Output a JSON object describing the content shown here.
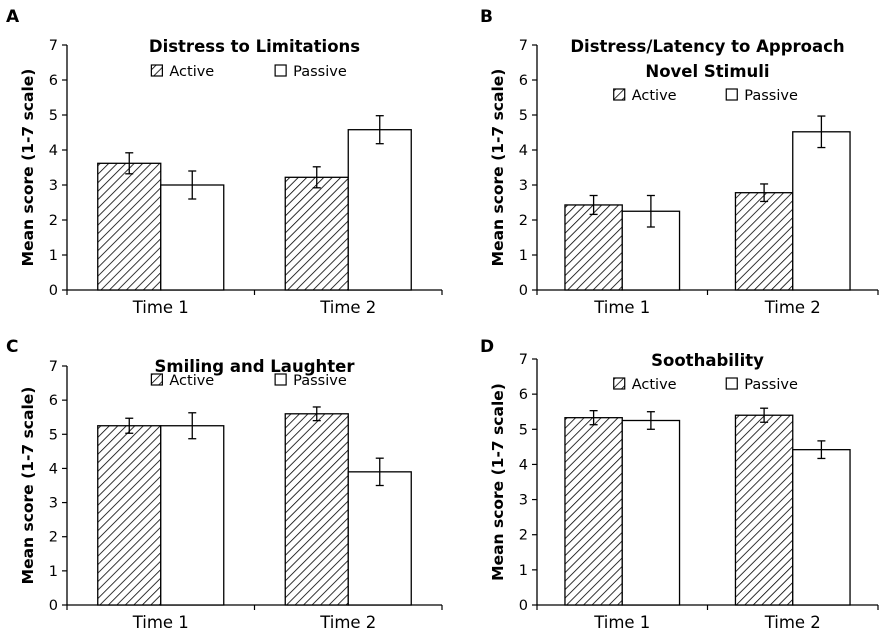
{
  "chart_data": [
    {
      "panel": "A",
      "type": "bar",
      "title": [
        "Distress to Limitations"
      ],
      "ylabel": "Mean score (1-7 scale)",
      "ylim": [
        0,
        7
      ],
      "yticks": [
        "0",
        "1",
        "2",
        "3",
        "4",
        "5",
        "6",
        "7"
      ],
      "categories": [
        "Time 1",
        "Time 2"
      ],
      "legend": "top",
      "series": [
        {
          "name": "Active",
          "pattern": "hatched",
          "values": [
            3.62,
            3.22
          ],
          "errors": [
            0.3,
            0.3
          ]
        },
        {
          "name": "Passive",
          "pattern": "open",
          "values": [
            3.0,
            4.58
          ],
          "errors": [
            0.4,
            0.4
          ]
        }
      ]
    },
    {
      "panel": "B",
      "type": "bar",
      "title": [
        "Distress/Latency to Approach",
        "Novel Stimuli"
      ],
      "ylabel": "Mean score (1-7 scale)",
      "ylim": [
        0,
        7
      ],
      "yticks": [
        "0",
        "1",
        "2",
        "3",
        "4",
        "5",
        "6",
        "7"
      ],
      "categories": [
        "Time 1",
        "Time 2"
      ],
      "legend": "top",
      "series": [
        {
          "name": "Active",
          "pattern": "hatched",
          "values": [
            2.43,
            2.78
          ],
          "errors": [
            0.27,
            0.25
          ]
        },
        {
          "name": "Passive",
          "pattern": "open",
          "values": [
            2.25,
            4.52
          ],
          "errors": [
            0.45,
            0.45
          ]
        }
      ]
    },
    {
      "panel": "C",
      "type": "bar",
      "title": [
        "Smiling and Laughter"
      ],
      "ylabel": "Mean score (1-7 scale)",
      "ylim": [
        0,
        7
      ],
      "yticks": [
        "0",
        "1",
        "2",
        "3",
        "4",
        "5",
        "6",
        "7"
      ],
      "categories": [
        "Time 1",
        "Time 2"
      ],
      "legend": "top",
      "series": [
        {
          "name": "Active",
          "pattern": "hatched",
          "values": [
            5.25,
            5.6
          ],
          "errors": [
            0.22,
            0.2
          ]
        },
        {
          "name": "Passive",
          "pattern": "open",
          "values": [
            5.25,
            3.9
          ],
          "errors": [
            0.38,
            0.4
          ]
        }
      ]
    },
    {
      "panel": "D",
      "type": "bar",
      "title": [
        "Soothability"
      ],
      "ylabel": "Mean score (1-7 scale)",
      "ylim": [
        0,
        7
      ],
      "yticks": [
        "0",
        "1",
        "2",
        "3",
        "4",
        "5",
        "6",
        "7"
      ],
      "categories": [
        "Time 1",
        "Time 2"
      ],
      "legend": "top",
      "series": [
        {
          "name": "Active",
          "pattern": "hatched",
          "values": [
            5.33,
            5.4
          ],
          "errors": [
            0.2,
            0.2
          ]
        },
        {
          "name": "Passive",
          "pattern": "open",
          "values": [
            5.25,
            4.42
          ],
          "errors": [
            0.25,
            0.25
          ]
        }
      ]
    }
  ]
}
